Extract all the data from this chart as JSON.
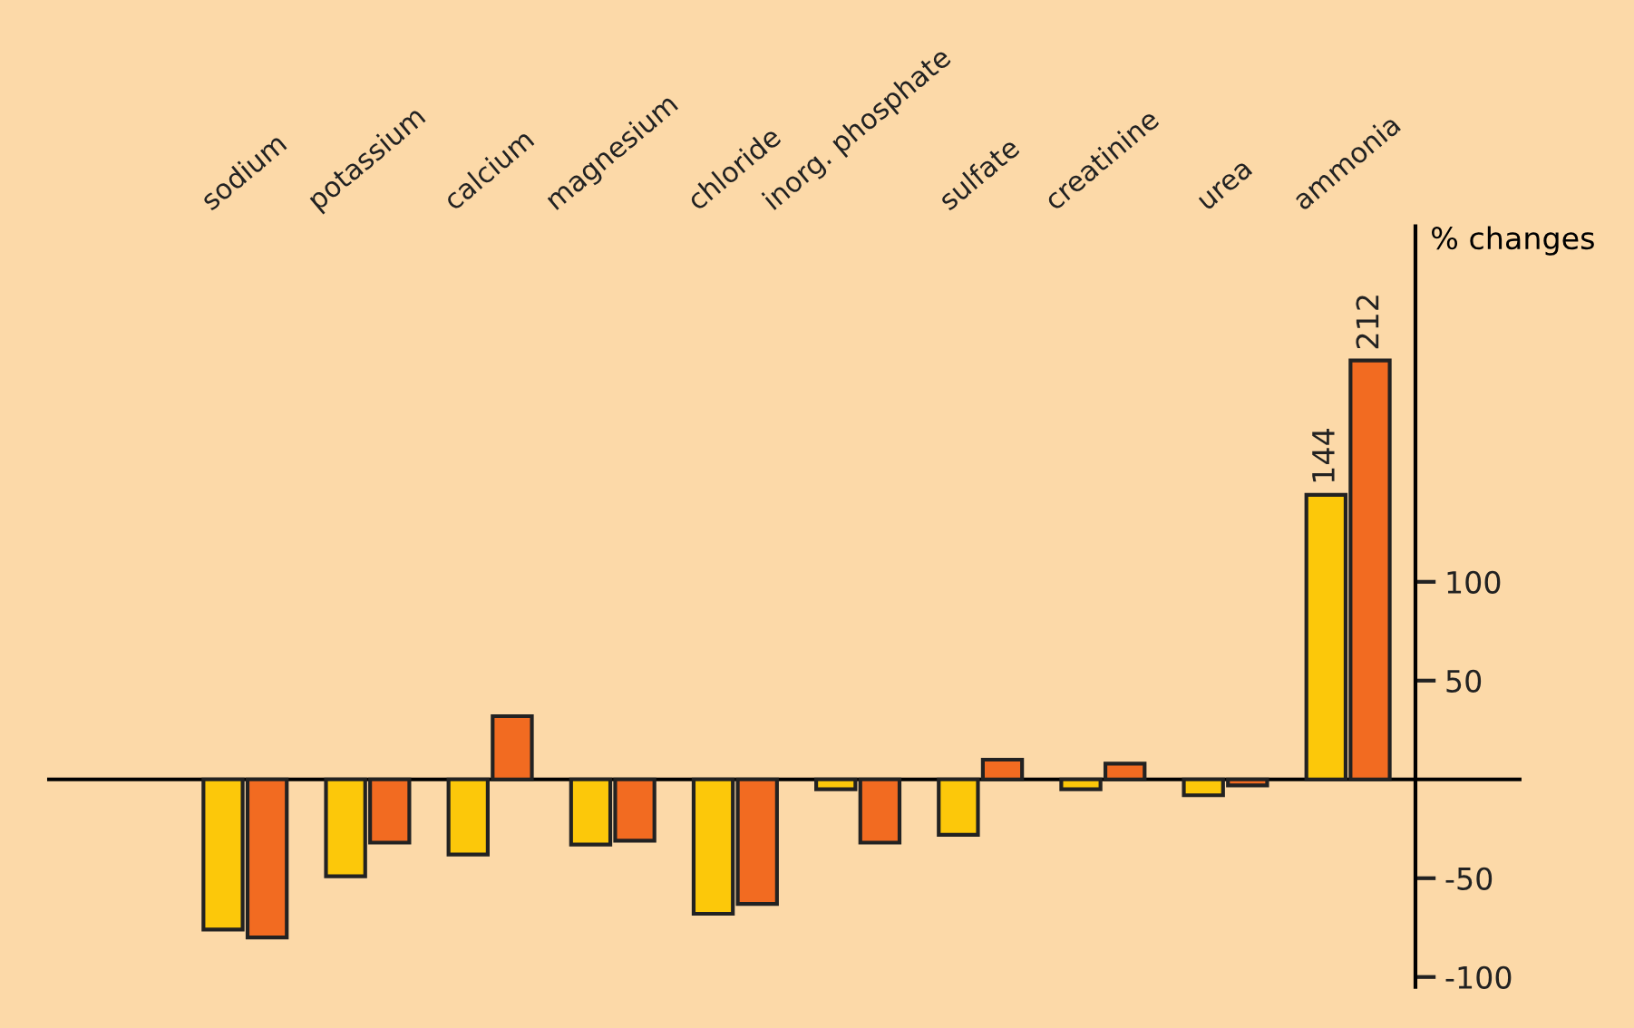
{
  "chart_data": {
    "type": "bar",
    "ylabel": "% changes",
    "categories": [
      "sodium",
      "potassium",
      "calcium",
      "magnesium",
      "chloride",
      "inorg. phosphate",
      "sulfate",
      "creatinine",
      "urea",
      "ammonia"
    ],
    "series": [
      {
        "color": "#fcc80a",
        "values": [
          -76,
          -49,
          -38,
          -33,
          -68,
          -5,
          -28,
          -5,
          -8,
          144
        ],
        "value_labels": [
          null,
          null,
          null,
          null,
          null,
          null,
          null,
          null,
          null,
          "144"
        ]
      },
      {
        "color": "#f26b21",
        "values": [
          -80,
          -32,
          32,
          -31,
          -63,
          -32,
          10,
          8,
          -3,
          212
        ],
        "value_labels": [
          null,
          null,
          null,
          null,
          null,
          null,
          null,
          null,
          null,
          "212"
        ]
      }
    ],
    "ylim": [
      -105,
      280
    ],
    "yticks": [
      -100,
      -50,
      50,
      100
    ],
    "grid": false,
    "legend": false
  }
}
